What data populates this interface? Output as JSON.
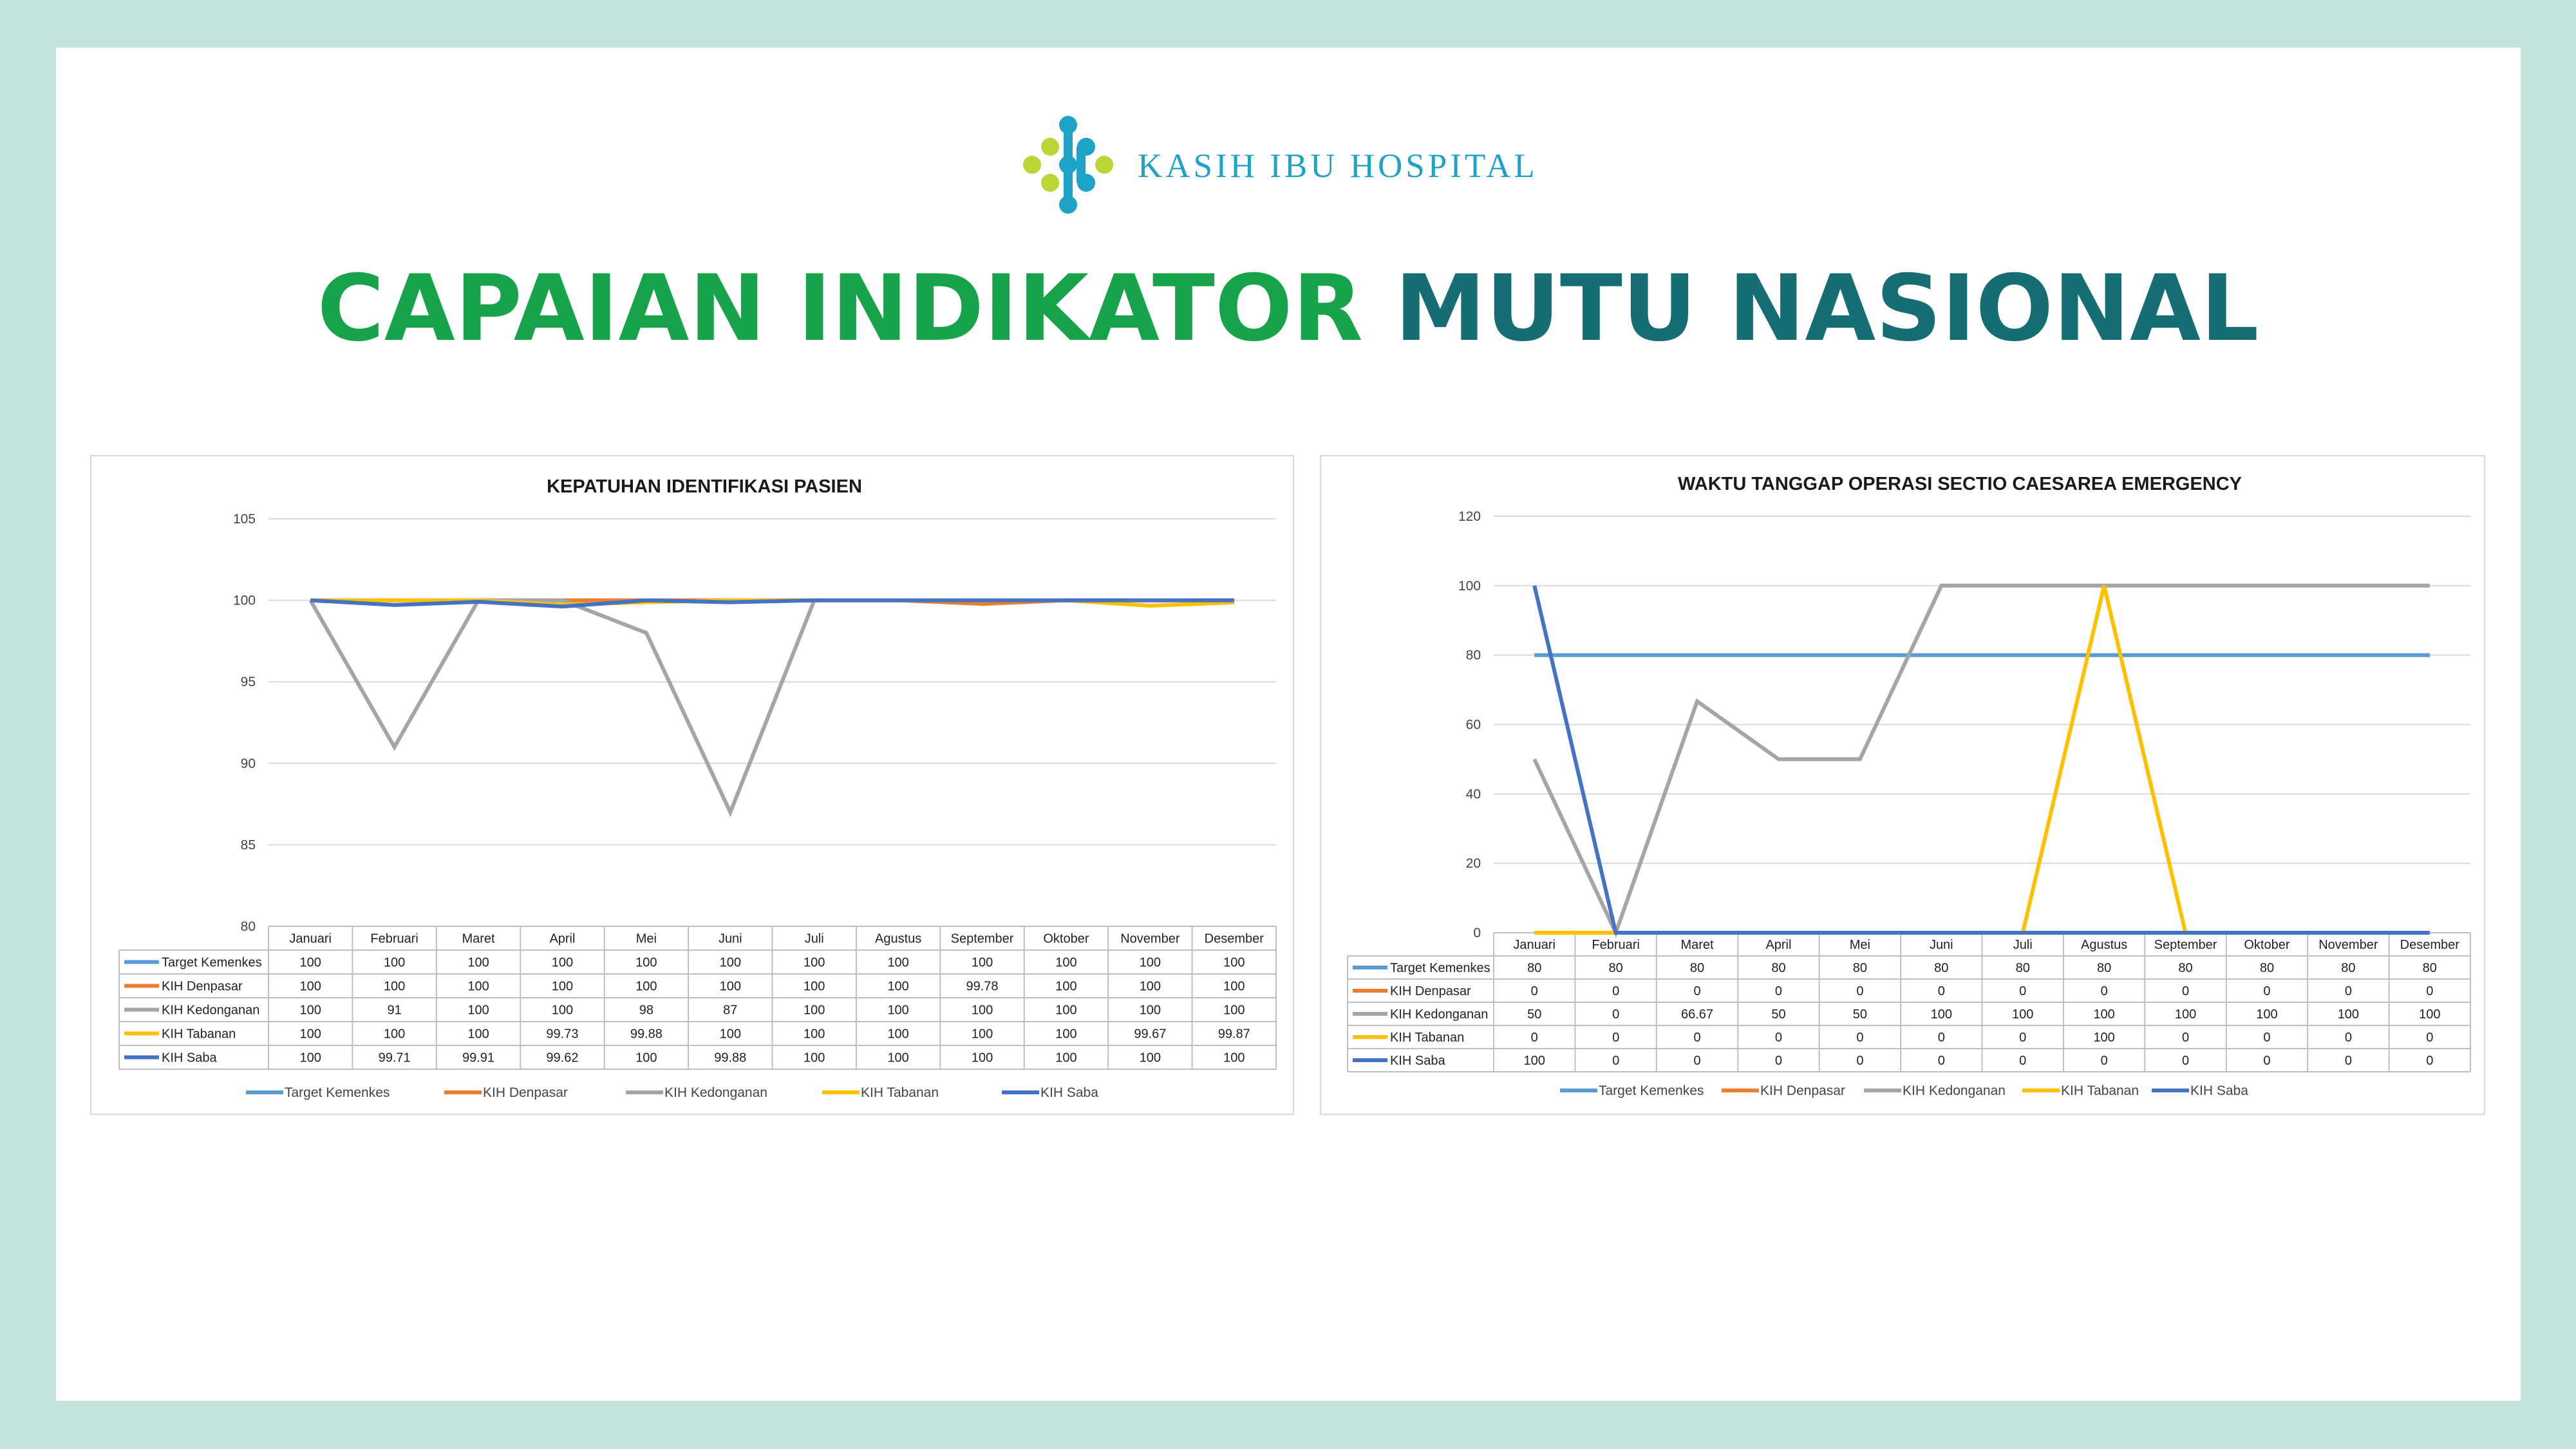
{
  "header": {
    "logo_text": "KASIH IBU HOSPITAL",
    "title_part1": "CAPAIAN INDIKATOR ",
    "title_part2": "MUTU NASIONAL"
  },
  "colors": {
    "background": "#c4e5de",
    "title_green": "#17a34a",
    "title_teal": "#176d74",
    "logo_blue": "#1ea3c7",
    "logo_lime": "#bcd435"
  },
  "chart_data": [
    {
      "type": "line",
      "title": "KEPATUHAN IDENTIFIKASI PASIEN",
      "categories": [
        "Januari",
        "Februari",
        "Maret",
        "April",
        "Mei",
        "Juni",
        "Juli",
        "Agustus",
        "September",
        "Oktober",
        "November",
        "Desember"
      ],
      "ylim": [
        80,
        105
      ],
      "yticks": [
        80,
        85,
        90,
        95,
        100,
        105
      ],
      "grid": true,
      "legend_position": "bottom",
      "data_table": true,
      "series": [
        {
          "name": "Target Kemenkes",
          "color": "#5b9bd5",
          "values": [
            100,
            100,
            100,
            100,
            100,
            100,
            100,
            100,
            100,
            100,
            100,
            100
          ],
          "labels": [
            "100",
            "100",
            "100",
            "100",
            "100",
            "100",
            "100",
            "100",
            "100",
            "100",
            "100",
            "100"
          ]
        },
        {
          "name": "KIH Denpasar",
          "color": "#ed7d31",
          "values": [
            100,
            100,
            100,
            100,
            100,
            100,
            100,
            100,
            99.78,
            100,
            100,
            100
          ],
          "labels": [
            "100",
            "100",
            "100",
            "100",
            "100",
            "100",
            "100",
            "100",
            "99.78",
            "100",
            "100",
            "100"
          ]
        },
        {
          "name": "KIH Kedonganan",
          "color": "#a5a5a5",
          "values": [
            100,
            91,
            100,
            100,
            98,
            87,
            100,
            100,
            100,
            100,
            100,
            100
          ],
          "labels": [
            "100",
            "91",
            "100",
            "100",
            "98",
            "87",
            "100",
            "100",
            "100",
            "100",
            "100",
            "100"
          ]
        },
        {
          "name": "KIH Tabanan",
          "color": "#ffc000",
          "values": [
            100,
            100,
            100,
            99.73,
            99.88,
            100,
            100,
            100,
            100,
            100,
            99.67,
            99.87
          ],
          "labels": [
            "100",
            "100",
            "100",
            "99.73",
            "99.88",
            "100",
            "100",
            "100",
            "100",
            "100",
            "99.67",
            "99.87"
          ]
        },
        {
          "name": "KIH Saba",
          "color": "#4472c4",
          "values": [
            100,
            99.71,
            99.91,
            99.62,
            100,
            99.88,
            100,
            100,
            100,
            100,
            100,
            100
          ],
          "labels": [
            "100",
            "99.71",
            "99.91",
            "99.62",
            "100",
            "99.88",
            "100",
            "100",
            "100",
            "100",
            "100",
            "100"
          ]
        }
      ]
    },
    {
      "type": "line",
      "title": "WAKTU TANGGAP OPERASI SECTIO CAESAREA EMERGENCY",
      "categories": [
        "Januari",
        "Februari",
        "Maret",
        "April",
        "Mei",
        "Juni",
        "Juli",
        "Agustus",
        "September",
        "Oktober",
        "November",
        "Desember"
      ],
      "ylim": [
        0,
        120
      ],
      "yticks": [
        0,
        20,
        40,
        60,
        80,
        100,
        120
      ],
      "grid": true,
      "legend_position": "bottom",
      "data_table": true,
      "series": [
        {
          "name": "Target Kemenkes",
          "color": "#5b9bd5",
          "values": [
            80,
            80,
            80,
            80,
            80,
            80,
            80,
            80,
            80,
            80,
            80,
            80
          ],
          "labels": [
            "80",
            "80",
            "80",
            "80",
            "80",
            "80",
            "80",
            "80",
            "80",
            "80",
            "80",
            "80"
          ]
        },
        {
          "name": "KIH Denpasar",
          "color": "#ed7d31",
          "values": [
            0,
            0,
            0,
            0,
            0,
            0,
            0,
            0,
            0,
            0,
            0,
            0
          ],
          "labels": [
            "0",
            "0",
            "0",
            "0",
            "0",
            "0",
            "0",
            "0",
            "0",
            "0",
            "0",
            "0"
          ]
        },
        {
          "name": "KIH Kedonganan",
          "color": "#a5a5a5",
          "values": [
            50,
            0,
            66.67,
            50,
            50,
            100,
            100,
            100,
            100,
            100,
            100,
            100
          ],
          "labels": [
            "50",
            "0",
            "66.67",
            "50",
            "50",
            "100",
            "100",
            "100",
            "100",
            "100",
            "100",
            "100"
          ]
        },
        {
          "name": "KIH Tabanan",
          "color": "#ffc000",
          "values": [
            0,
            0,
            0,
            0,
            0,
            0,
            0,
            100,
            0,
            0,
            0,
            0
          ],
          "labels": [
            "0",
            "0",
            "0",
            "0",
            "0",
            "0",
            "0",
            "100",
            "0",
            "0",
            "0",
            "0"
          ]
        },
        {
          "name": "KIH Saba",
          "color": "#4472c4",
          "values": [
            100,
            0,
            0,
            0,
            0,
            0,
            0,
            0,
            0,
            0,
            0,
            0
          ],
          "labels": [
            "100",
            "0",
            "0",
            "0",
            "0",
            "0",
            "0",
            "0",
            "0",
            "0",
            "0",
            "0"
          ]
        }
      ]
    }
  ]
}
